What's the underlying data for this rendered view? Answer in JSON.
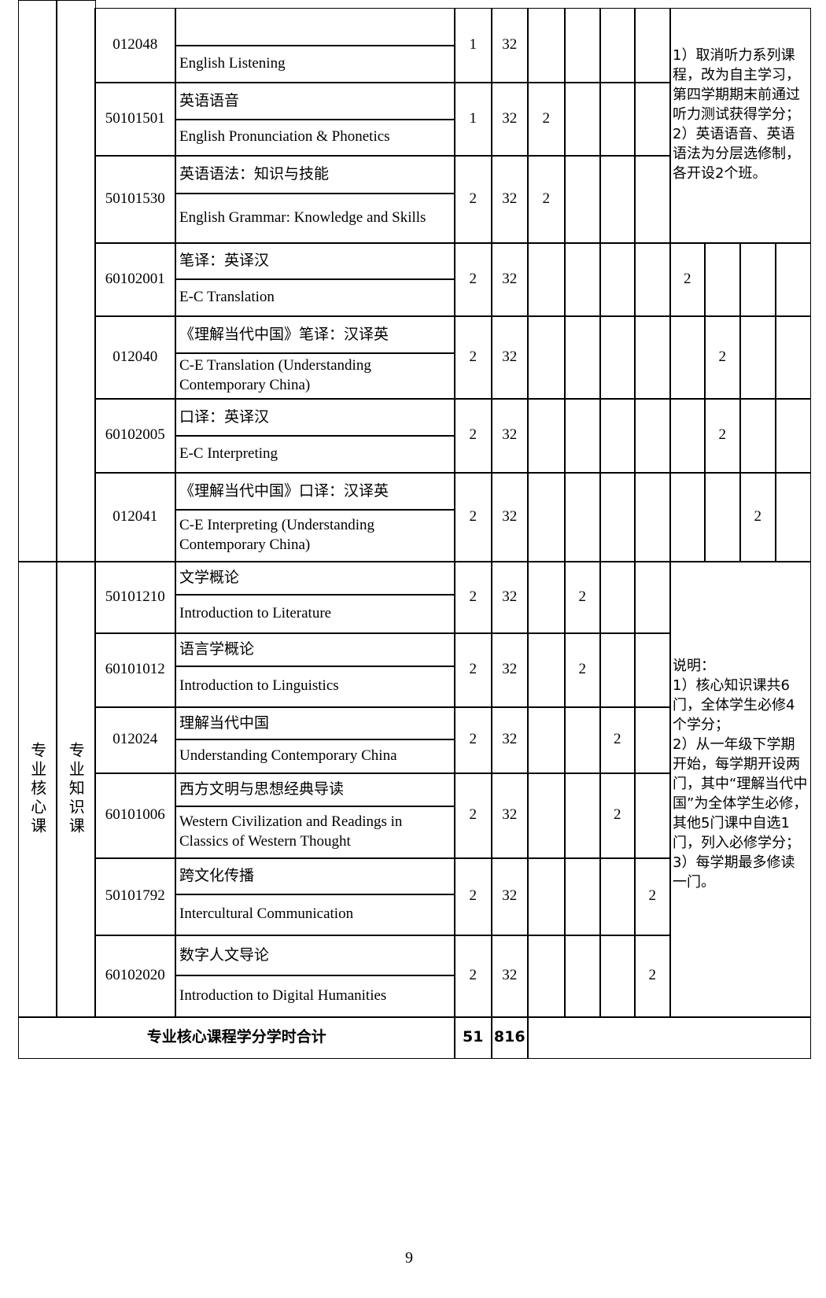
{
  "categories": {
    "group": "专业核心课",
    "subgroup": "专业知识课"
  },
  "upper_note": "1）取消听力系列课程，改为自主学习，第四学期期末前通过听力测试获得学分；\n2）英语语音、英语语法为分层选修制，各开设2个班。",
  "lower_note": "说明：\n1）核心知识课共6门，全体学生必修4个学分；\n2）从一年级下学期开始，每学期开设两门，其中“理解当代中国”为全体学生必修，其他5门课中自选1门，列入必修学分；\n3）每学期最多修读一门。",
  "courses": [
    {
      "code": "012048",
      "zh": "",
      "en": "English Listening",
      "credits": "1",
      "hours": "32",
      "semester_col": null,
      "semester_value": ""
    },
    {
      "code": "50101501",
      "zh": "英语语音",
      "en": "English Pronunciation & Phonetics",
      "credits": "1",
      "hours": "32",
      "semester_col": 1,
      "semester_value": "2"
    },
    {
      "code": "50101530",
      "zh": "英语语法：知识与技能",
      "en": "English Grammar: Knowledge and Skills",
      "credits": "2",
      "hours": "32",
      "semester_col": 1,
      "semester_value": "2"
    },
    {
      "code": "60102001",
      "zh": "笔译：英译汉",
      "en": "E-C Translation",
      "credits": "2",
      "hours": "32",
      "semester_col": 5,
      "semester_value": "2"
    },
    {
      "code": "012040",
      "zh": "《理解当代中国》笔译：汉译英",
      "en": "C-E Translation (Understanding Contemporary China)",
      "credits": "2",
      "hours": "32",
      "semester_col": 6,
      "semester_value": "2"
    },
    {
      "code": "60102005",
      "zh": "口译：英译汉",
      "en": "E-C Interpreting",
      "credits": "2",
      "hours": "32",
      "semester_col": 6,
      "semester_value": "2"
    },
    {
      "code": "012041",
      "zh": "《理解当代中国》口译：汉译英",
      "en": "C-E Interpreting (Understanding Contemporary China)",
      "credits": "2",
      "hours": "32",
      "semester_col": 7,
      "semester_value": "2"
    },
    {
      "code": "50101210",
      "zh": "文学概论",
      "en": "Introduction to Literature",
      "credits": "2",
      "hours": "32",
      "semester_col": 2,
      "semester_value": "2"
    },
    {
      "code": "60101012",
      "zh": "语言学概论",
      "en": "Introduction to Linguistics",
      "credits": "2",
      "hours": "32",
      "semester_col": 2,
      "semester_value": "2"
    },
    {
      "code": "012024",
      "zh": "理解当代中国",
      "en": "Understanding Contemporary China",
      "credits": "2",
      "hours": "32",
      "semester_col": 3,
      "semester_value": "2"
    },
    {
      "code": "60101006",
      "zh": "西方文明与思想经典导读",
      "en": "Western Civilization and Readings in Classics of Western Thought",
      "credits": "2",
      "hours": "32",
      "semester_col": 3,
      "semester_value": "2"
    },
    {
      "code": "50101792",
      "zh": "跨文化传播",
      "en": "Intercultural Communication",
      "credits": "2",
      "hours": "32",
      "semester_col": 4,
      "semester_value": "2"
    },
    {
      "code": "60102020",
      "zh": "数字人文导论",
      "en": "Introduction to Digital Humanities",
      "credits": "2",
      "hours": "32",
      "semester_col": 4,
      "semester_value": "2"
    }
  ],
  "total": {
    "label": "专业核心课程学分学时合计",
    "credits": "51",
    "hours": "816"
  },
  "page_number": "9"
}
